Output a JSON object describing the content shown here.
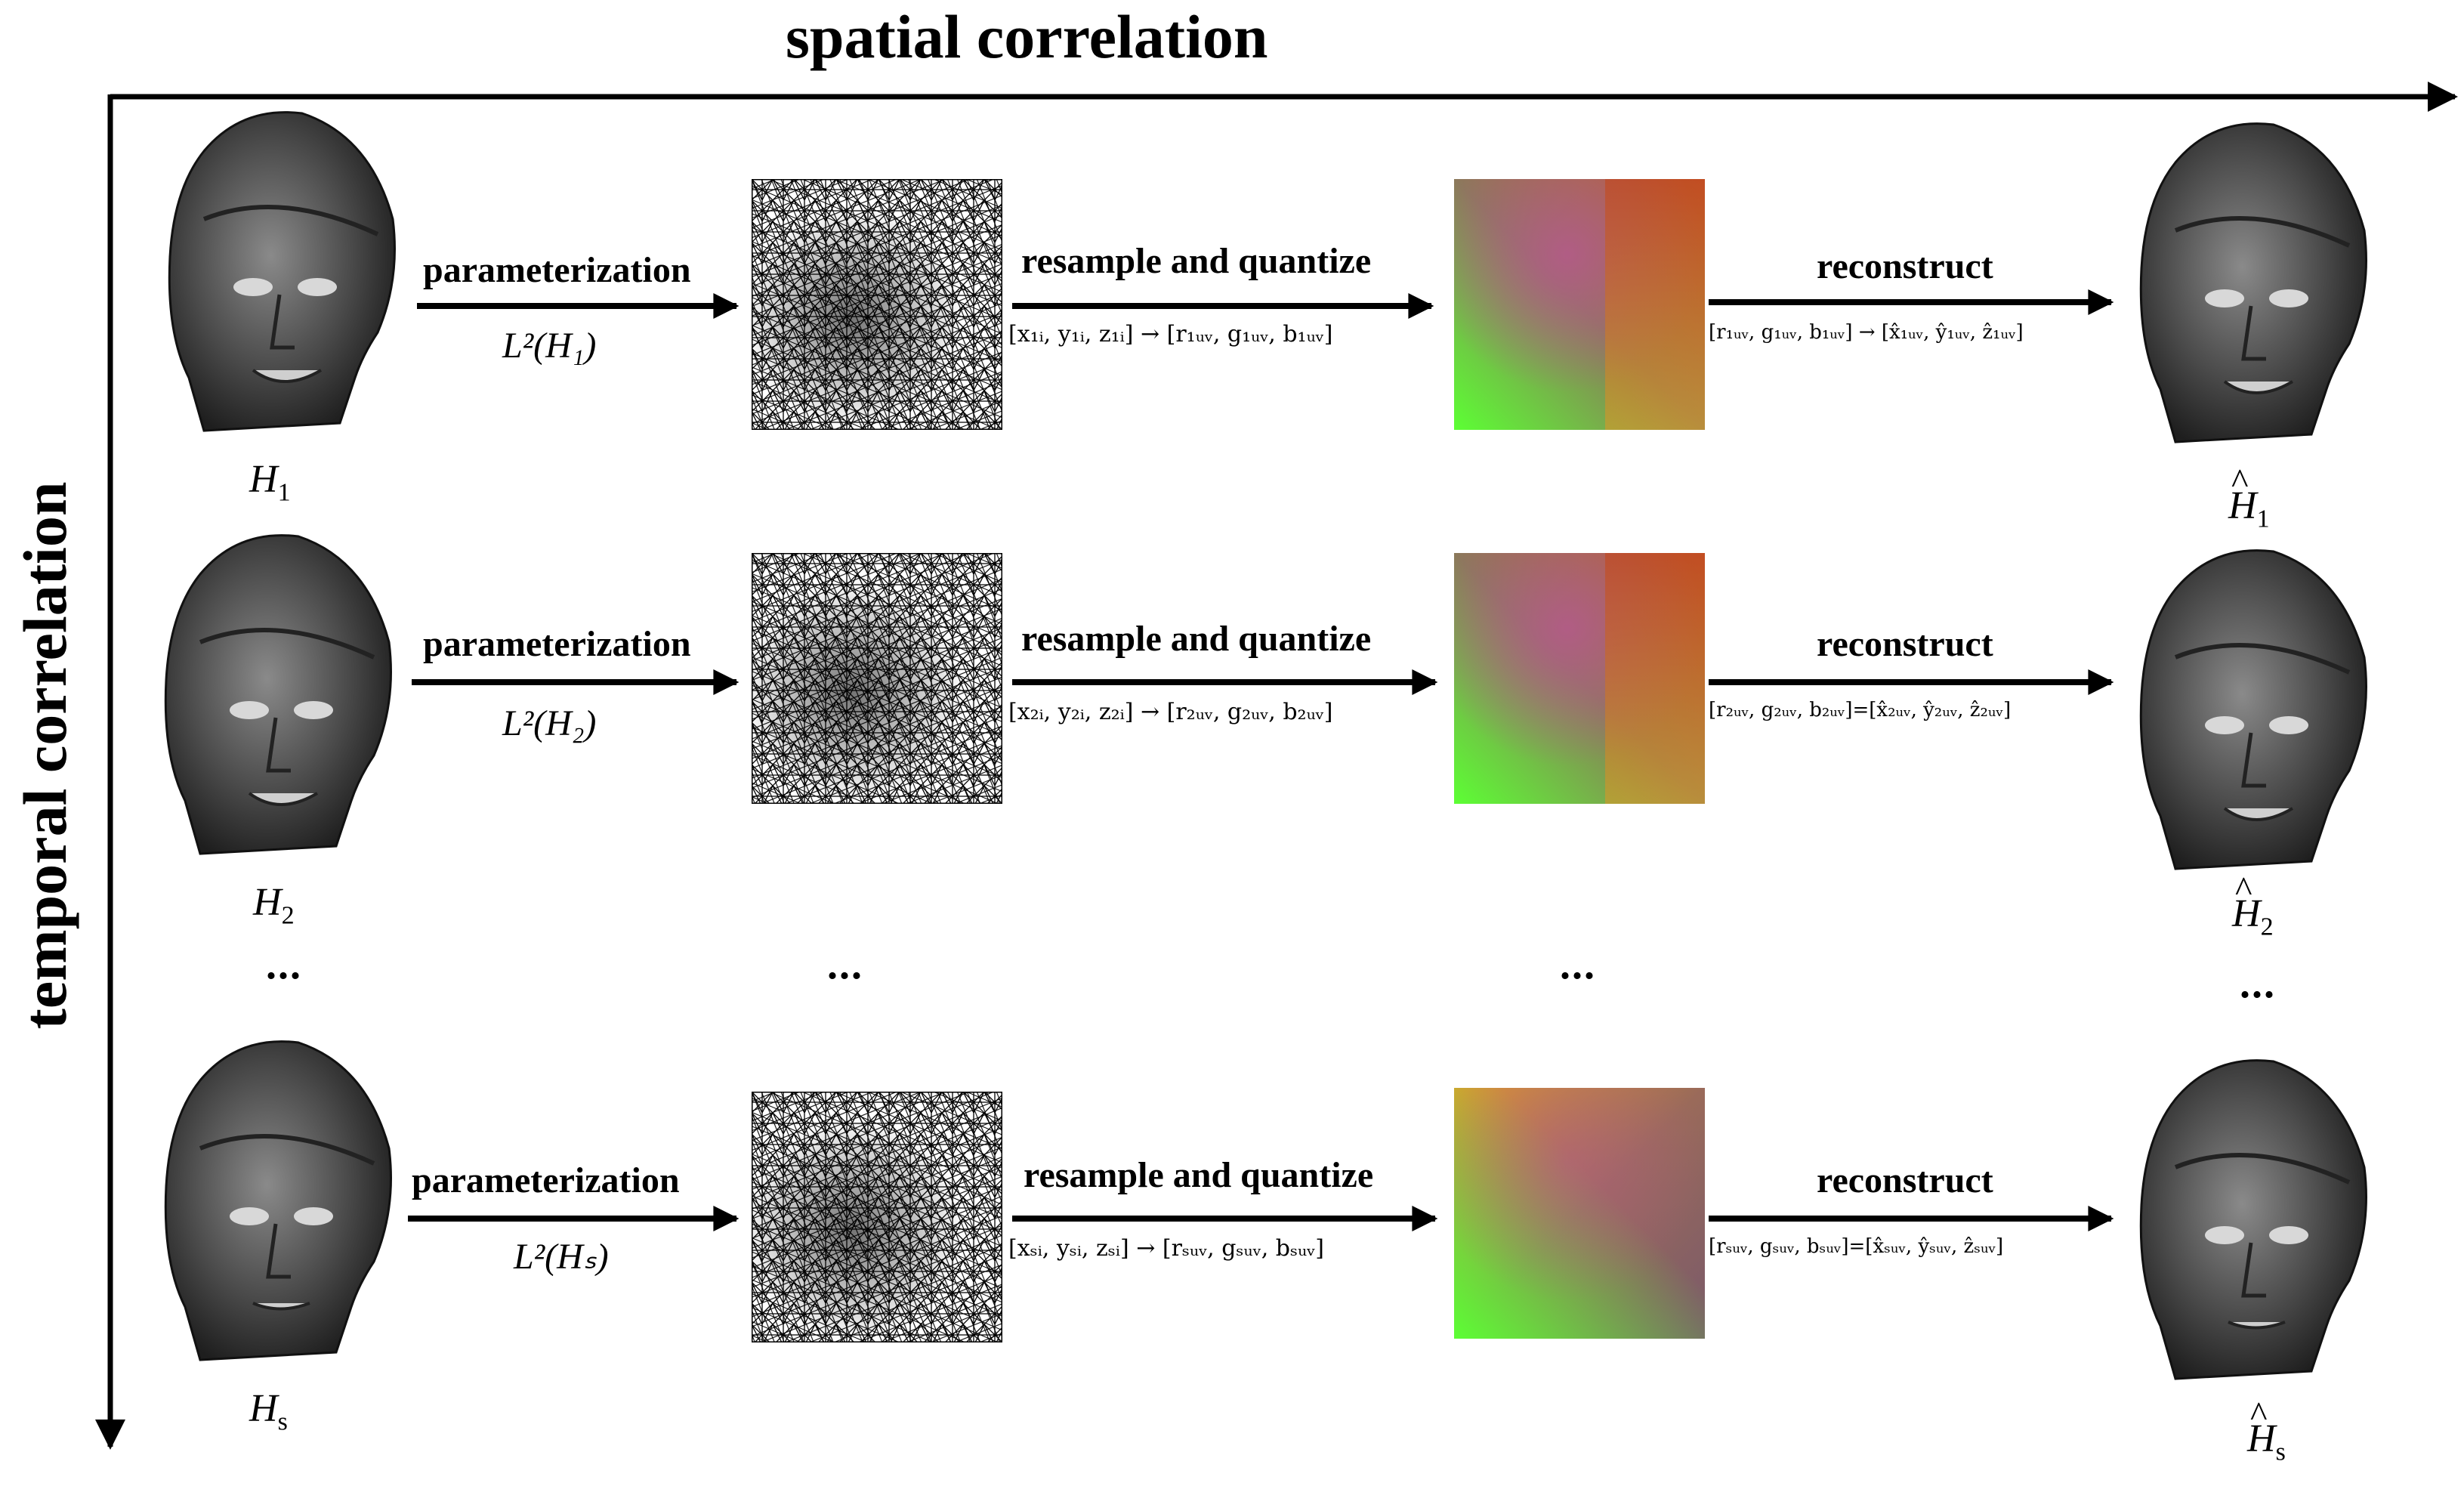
{
  "axes": {
    "x_title": "spatial correlation",
    "y_title": "temporal correlation"
  },
  "rows": [
    {
      "param_label": "parameterization",
      "param_formula": "L²(H₁)",
      "resample_label": "resample and quantize",
      "resample_map": "[x₁ᵢ, y₁ᵢ, z₁ᵢ] → [r₁ᵤᵥ, g₁ᵤᵥ, b₁ᵤᵥ]",
      "reconstruct_label": "reconstruct",
      "reconstruct_map": "[r₁ᵤᵥ, g₁ᵤᵥ, b₁ᵤᵥ] → [x̂₁ᵤᵥ, ŷ₁ᵤᵥ, ẑ₁ᵤᵥ]",
      "input_label": "H",
      "input_sub": "1",
      "output_label": "H",
      "output_sub": "1"
    },
    {
      "param_label": "parameterization",
      "param_formula": "L²(H₂)",
      "resample_label": "resample and quantize",
      "resample_map": "[x₂ᵢ, y₂ᵢ, z₂ᵢ] → [r₂ᵤᵥ, g₂ᵤᵥ, b₂ᵤᵥ]",
      "reconstruct_label": "reconstruct",
      "reconstruct_map": "[r₂ᵤᵥ, g₂ᵤᵥ, b₂ᵤᵥ]=[x̂₂ᵤᵥ, ŷ₂ᵤᵥ, ẑ₂ᵤᵥ]",
      "input_label": "H",
      "input_sub": "2",
      "output_label": "H",
      "output_sub": "2"
    },
    {
      "param_label": "parameterization",
      "param_formula": "L²(Hₛ)",
      "resample_label": "resample and quantize",
      "resample_map": "[xₛᵢ, yₛᵢ, zₛᵢ] → [rₛᵤᵥ, gₛᵤᵥ, bₛᵤᵥ]",
      "reconstruct_label": "reconstruct",
      "reconstruct_map": "[rₛᵤᵥ, gₛᵤᵥ, bₛᵤᵥ]=[x̂ₛᵤᵥ, ŷₛᵤᵥ, ẑₛᵤᵥ]",
      "input_label": "H",
      "input_sub": "s",
      "output_label": "H",
      "output_sub": "s"
    }
  ],
  "ellipsis": "...",
  "colors": {
    "arrow": "#000000",
    "face_dark": "#2a2a2a",
    "face_light": "#9a9a9a",
    "geo_red": "#b8452a",
    "geo_green": "#6aff3a",
    "geo_orange": "#c8922a",
    "geo_purple": "#a05570"
  }
}
